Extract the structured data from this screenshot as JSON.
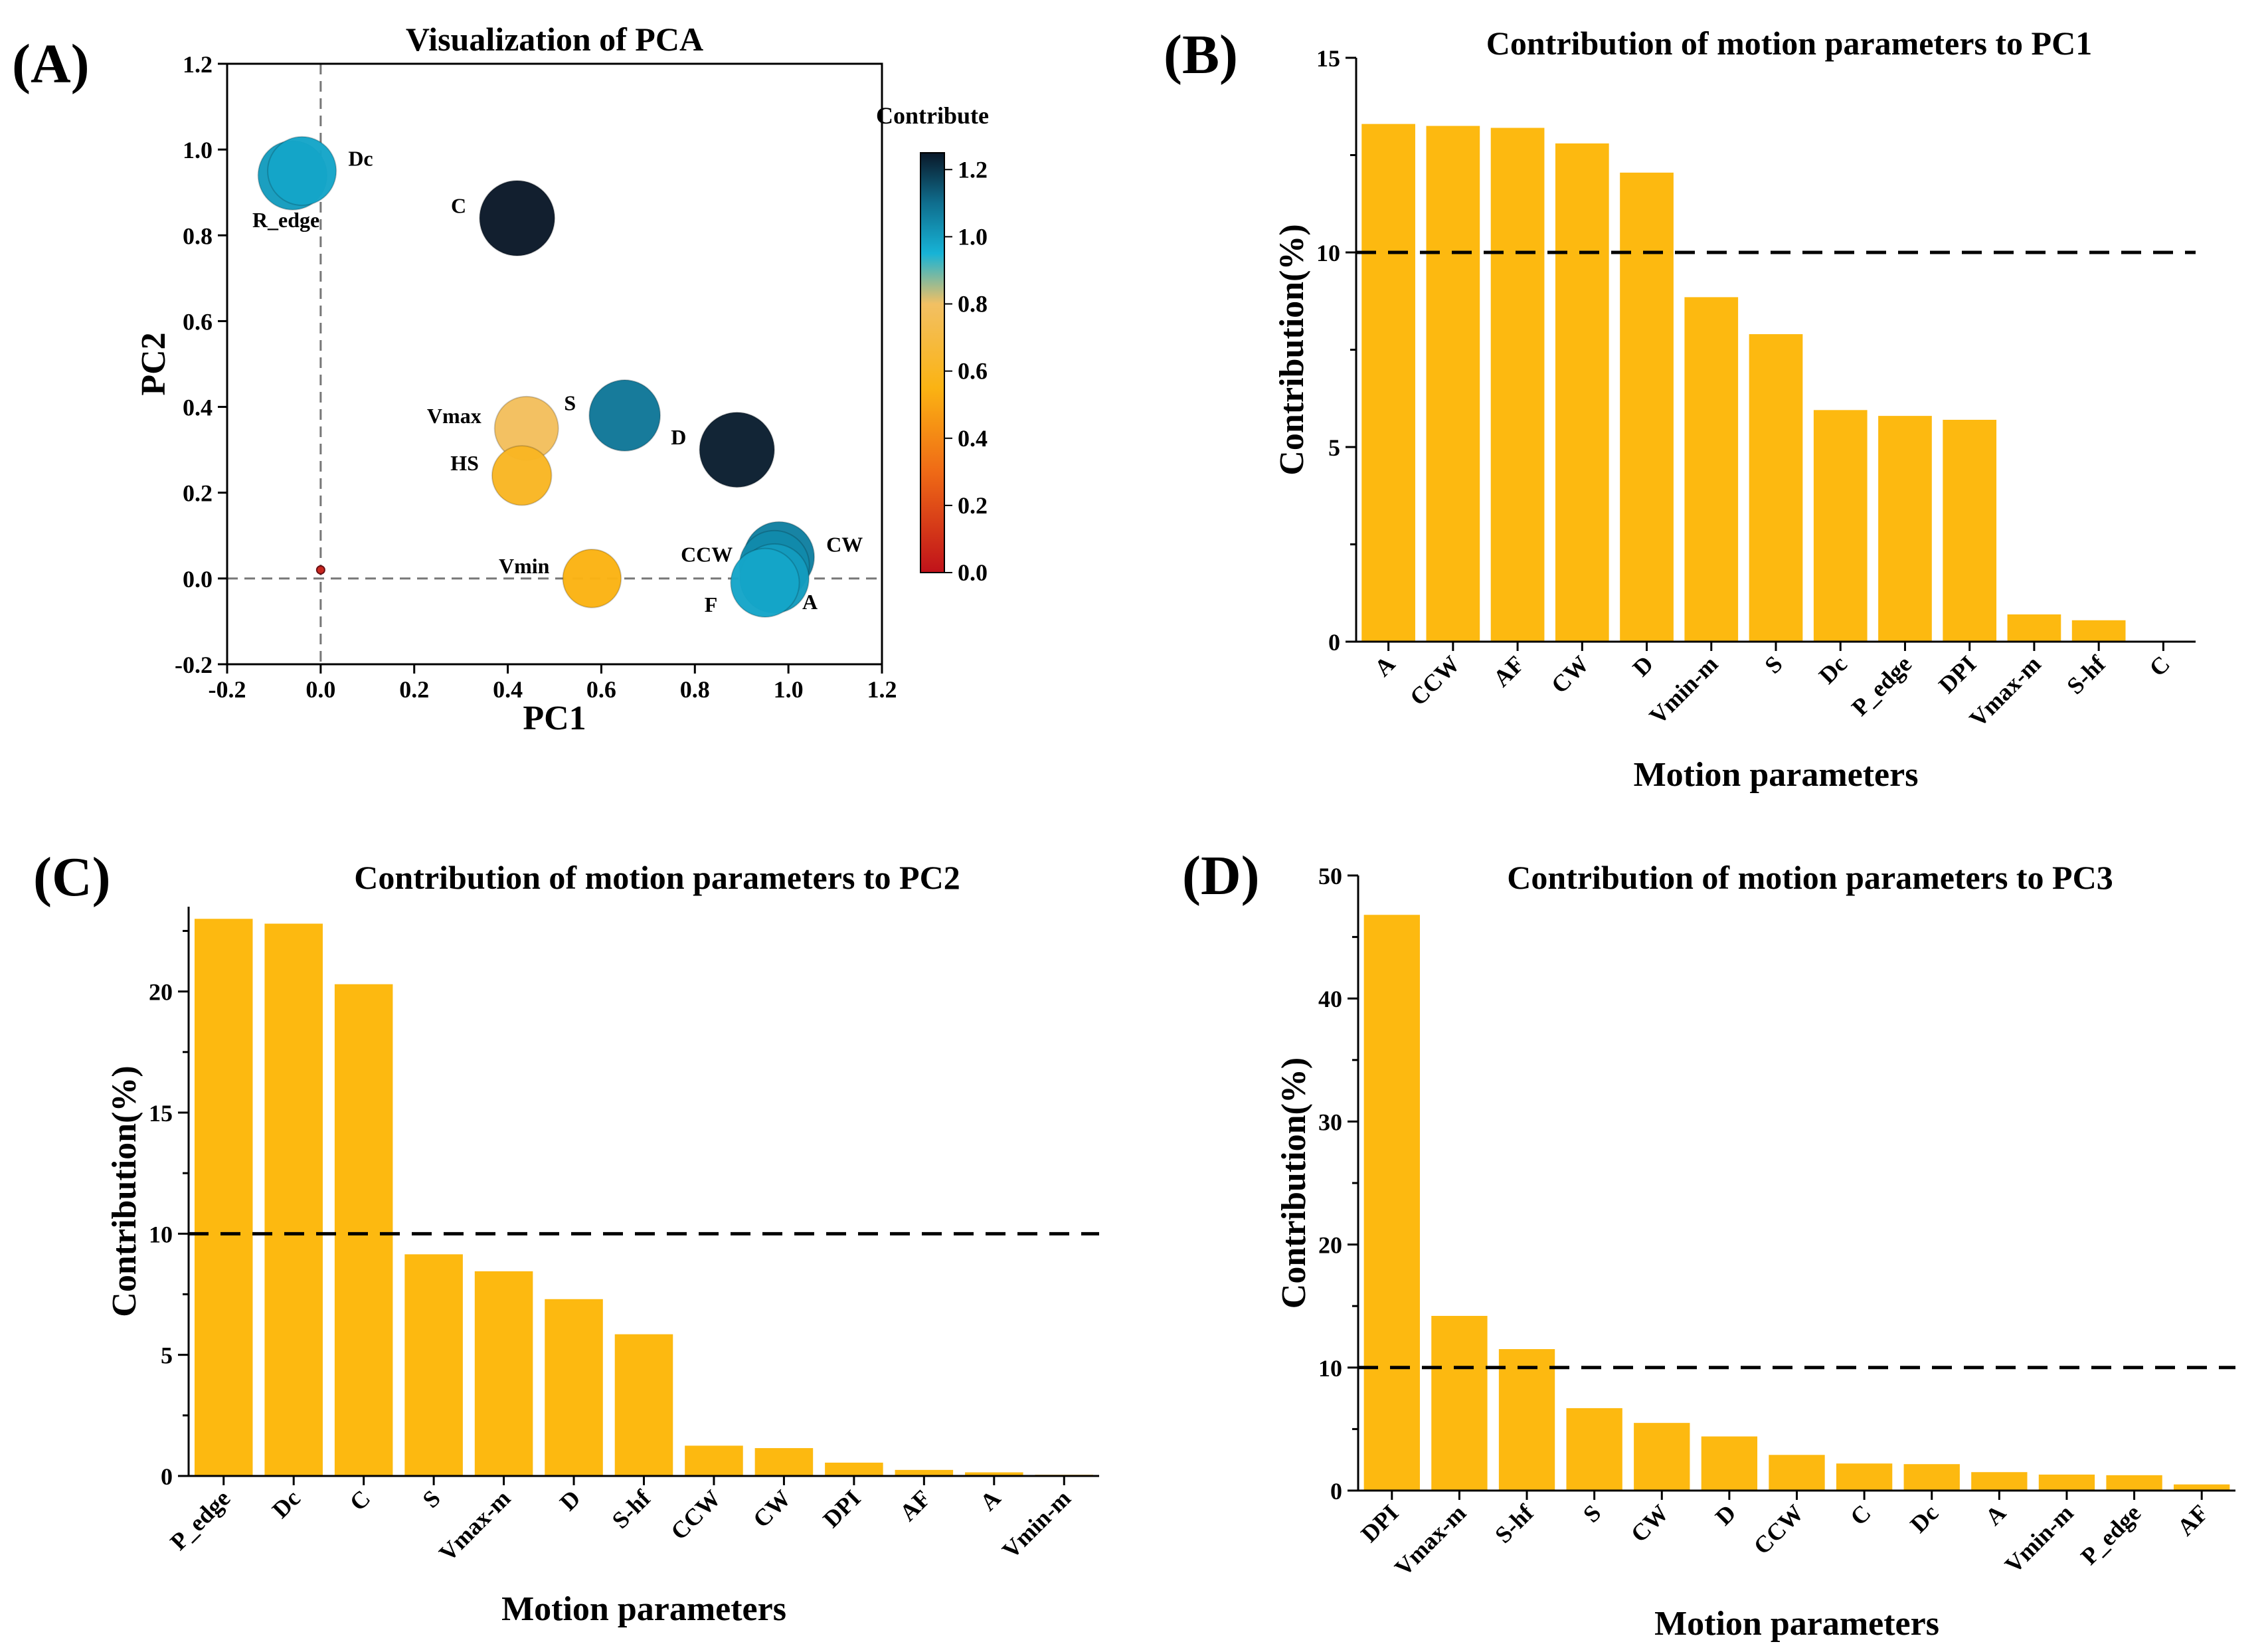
{
  "chart_data": [
    {
      "id": "A",
      "panel_label": "(A)",
      "type": "scatter",
      "title": "Visualization of PCA",
      "xlabel": "PC1",
      "ylabel": "PC2",
      "xlim": [
        -0.2,
        1.2
      ],
      "ylim": [
        -0.2,
        1.2
      ],
      "xticks": [
        -0.2,
        0.0,
        0.2,
        0.4,
        0.6,
        0.8,
        1.0,
        1.2
      ],
      "yticks": [
        -0.2,
        0.0,
        0.2,
        0.4,
        0.6,
        0.8,
        1.0,
        1.2
      ],
      "xtick_labels": [
        "-0.2",
        "0.0",
        "0.2",
        "0.4",
        "0.6",
        "0.8",
        "1.0",
        "1.2"
      ],
      "ytick_labels": [
        "-0.2",
        "0.0",
        "0.2",
        "0.4",
        "0.6",
        "0.8",
        "1.0",
        "1.2"
      ],
      "colorbar": {
        "title": "Contribute",
        "range": [
          0.0,
          1.25
        ],
        "ticks": [
          0.0,
          0.2,
          0.4,
          0.6,
          0.8,
          1.0,
          1.2
        ],
        "tick_labels": [
          "0.0",
          "0.2",
          "0.4",
          "0.6",
          "0.8",
          "1.0",
          "1.2"
        ],
        "stops": [
          {
            "v": 0.0,
            "color": "#c0121a"
          },
          {
            "v": 0.3,
            "color": "#ef6a16"
          },
          {
            "v": 0.55,
            "color": "#fbb313"
          },
          {
            "v": 0.8,
            "color": "#f2c063"
          },
          {
            "v": 0.95,
            "color": "#17b3d6"
          },
          {
            "v": 1.1,
            "color": "#0f6e8e"
          },
          {
            "v": 1.25,
            "color": "#0a1828"
          }
        ]
      },
      "points": [
        {
          "label": "R_edge",
          "x": -0.06,
          "y": 0.94,
          "contribute": 1.0,
          "anchor": "below"
        },
        {
          "label": "Dc",
          "x": -0.04,
          "y": 0.95,
          "contribute": 0.98,
          "anchor": "right"
        },
        {
          "label": "C",
          "x": 0.42,
          "y": 0.84,
          "contribute": 1.25,
          "anchor": "left"
        },
        {
          "label": "S",
          "x": 0.65,
          "y": 0.38,
          "contribute": 1.08,
          "anchor": "left"
        },
        {
          "label": "D",
          "x": 0.89,
          "y": 0.3,
          "contribute": 1.24,
          "anchor": "left"
        },
        {
          "label": "Vmax",
          "x": 0.44,
          "y": 0.35,
          "contribute": 0.78,
          "anchor": "left"
        },
        {
          "label": "HS",
          "x": 0.43,
          "y": 0.24,
          "contribute": 0.6,
          "anchor": "left"
        },
        {
          "label": "Vmin",
          "x": 0.58,
          "y": 0.0,
          "contribute": 0.55,
          "anchor": "left"
        },
        {
          "label": "CW",
          "x": 0.98,
          "y": 0.05,
          "contribute": 1.06,
          "anchor": "right"
        },
        {
          "label": "CCW",
          "x": 0.97,
          "y": 0.03,
          "contribute": 1.04,
          "anchor": "upleft"
        },
        {
          "label": "A",
          "x": 0.97,
          "y": 0.0,
          "contribute": 1.0,
          "anchor": "lowright"
        },
        {
          "label": "F",
          "x": 0.95,
          "y": -0.01,
          "contribute": 0.98,
          "anchor": "lowleft"
        },
        {
          "label": "",
          "x": 0.0,
          "y": 0.02,
          "contribute": 0.05,
          "anchor": "none"
        }
      ]
    },
    {
      "id": "B",
      "panel_label": "(B)",
      "type": "bar",
      "title": "Contribution of motion parameters to PC1",
      "xlabel": "Motion parameters",
      "ylabel": "Contribution(%)",
      "ylim": [
        0,
        15
      ],
      "yticks": [
        0,
        5,
        10,
        15
      ],
      "ytick_labels": [
        "0",
        "5",
        "10",
        "15"
      ],
      "reference_line": 10,
      "bar_color": "#fdb910",
      "categories": [
        "A",
        "CCW",
        "AF",
        "CW",
        "D",
        "Vmin-m",
        "S",
        "Dc",
        "P_edge",
        "DPI",
        "Vmax-m",
        "S-hf",
        "C"
      ],
      "values": [
        13.3,
        13.25,
        13.2,
        12.8,
        12.05,
        8.85,
        7.9,
        5.95,
        5.8,
        5.7,
        0.7,
        0.55,
        0.02
      ]
    },
    {
      "id": "C",
      "panel_label": "(C)",
      "type": "bar",
      "title": "Contribution of motion parameters to PC2",
      "xlabel": "Motion parameters",
      "ylabel": "Contribution(%)",
      "ylim": [
        0,
        23.5
      ],
      "yticks": [
        0,
        5,
        10,
        15,
        20
      ],
      "ytick_labels": [
        "0",
        "5",
        "10",
        "15",
        "20"
      ],
      "reference_line": 10,
      "bar_color": "#fdb910",
      "categories": [
        "P_edge",
        "Dc",
        "C",
        "S",
        "Vmax-m",
        "D",
        "S-hf",
        "CCW",
        "CW",
        "DPI",
        "AF",
        "A",
        "Vmin-m"
      ],
      "values": [
        23.0,
        22.8,
        20.3,
        9.15,
        8.45,
        7.3,
        5.85,
        1.25,
        1.15,
        0.55,
        0.25,
        0.15,
        0.05
      ]
    },
    {
      "id": "D",
      "panel_label": "(D)",
      "type": "bar",
      "title": "Contribution of motion parameters to PC3",
      "xlabel": "Motion parameters",
      "ylabel": "Contribution(%)",
      "ylim": [
        0,
        50
      ],
      "yticks": [
        0,
        10,
        20,
        30,
        40,
        50
      ],
      "ytick_labels": [
        "0",
        "10",
        "20",
        "30",
        "40",
        "50"
      ],
      "reference_line": 10,
      "bar_color": "#fdb910",
      "categories": [
        "DPI",
        "Vmax-m",
        "S-hf",
        "S",
        "CW",
        "D",
        "CCW",
        "C",
        "Dc",
        "A",
        "Vmin-m",
        "P_edge",
        "AF"
      ],
      "values": [
        46.8,
        14.2,
        11.5,
        6.7,
        5.5,
        4.4,
        2.9,
        2.2,
        2.15,
        1.5,
        1.3,
        1.25,
        0.5
      ]
    }
  ]
}
